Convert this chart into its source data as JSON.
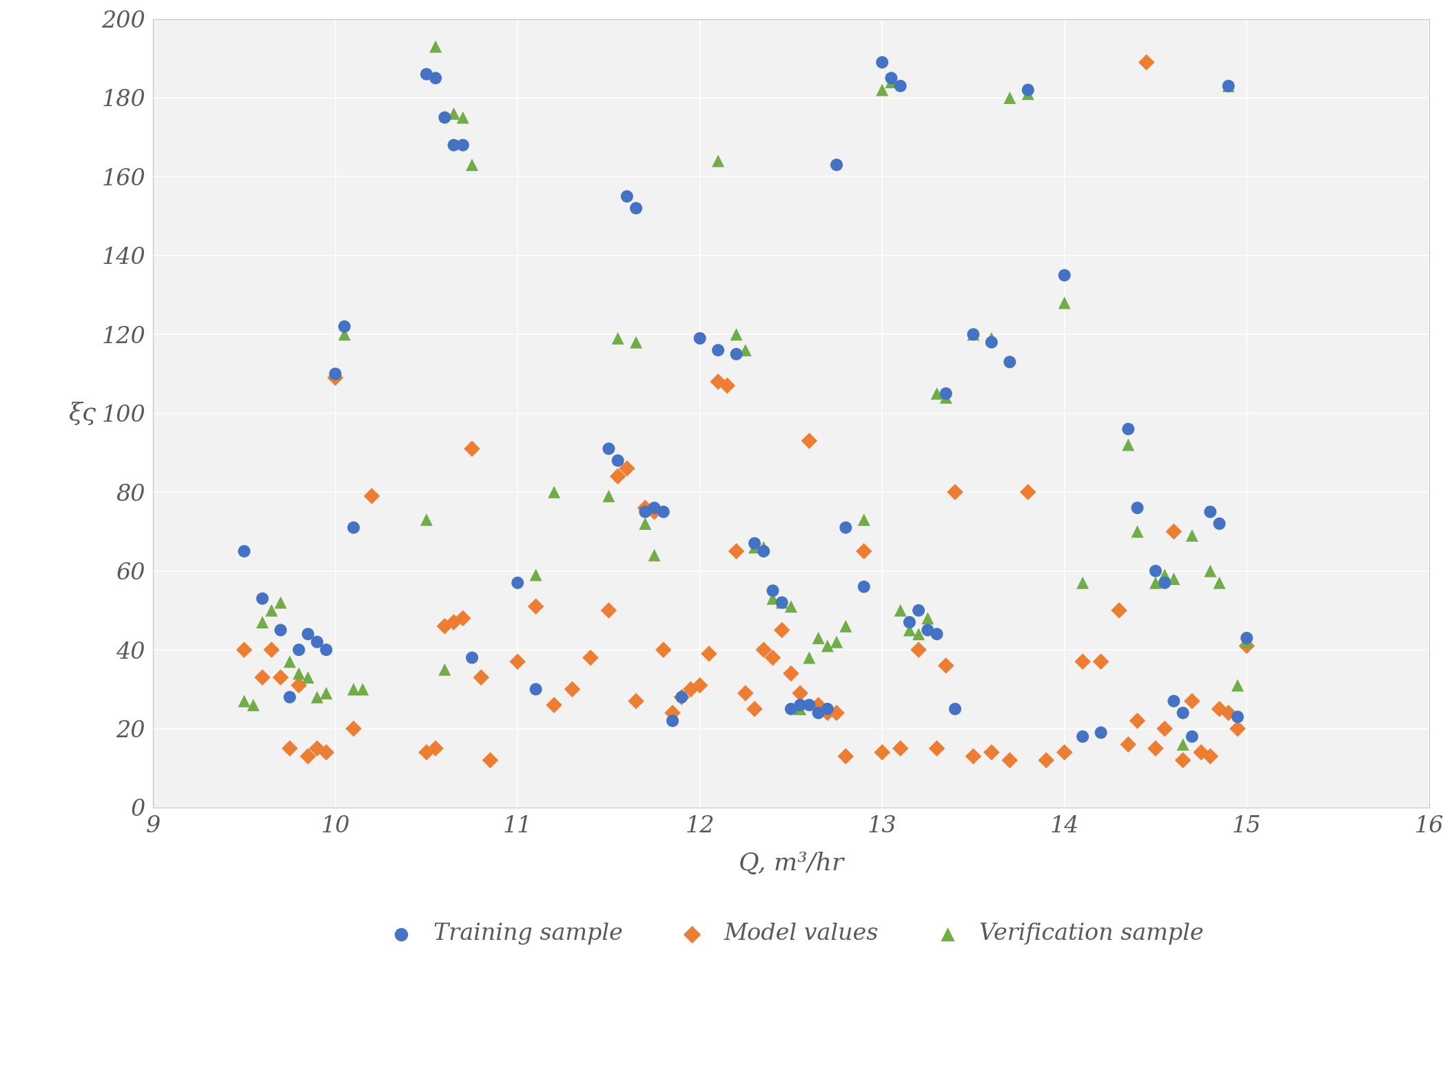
{
  "training_x": [
    9.5,
    9.6,
    9.7,
    9.75,
    9.8,
    9.85,
    9.9,
    9.95,
    10.0,
    10.05,
    10.1,
    10.5,
    10.55,
    10.6,
    10.65,
    10.7,
    10.75,
    11.0,
    11.1,
    11.5,
    11.55,
    11.6,
    11.65,
    11.7,
    11.75,
    11.8,
    11.85,
    11.9,
    12.0,
    12.1,
    12.2,
    12.3,
    12.35,
    12.4,
    12.45,
    12.5,
    12.55,
    12.6,
    12.65,
    12.7,
    12.75,
    12.8,
    12.9,
    13.0,
    13.05,
    13.1,
    13.15,
    13.2,
    13.25,
    13.3,
    13.35,
    13.4,
    13.5,
    13.6,
    13.7,
    13.8,
    14.0,
    14.1,
    14.2,
    14.35,
    14.4,
    14.5,
    14.55,
    14.6,
    14.65,
    14.7,
    14.8,
    14.85,
    14.9,
    14.95,
    15.0
  ],
  "training_y": [
    65,
    53,
    45,
    28,
    40,
    44,
    42,
    40,
    110,
    122,
    71,
    186,
    185,
    175,
    168,
    168,
    38,
    57,
    30,
    91,
    88,
    155,
    152,
    75,
    76,
    75,
    22,
    28,
    119,
    116,
    115,
    67,
    65,
    55,
    52,
    25,
    26,
    26,
    24,
    25,
    163,
    71,
    56,
    189,
    185,
    183,
    47,
    50,
    45,
    44,
    105,
    25,
    120,
    118,
    113,
    182,
    135,
    18,
    19,
    96,
    76,
    60,
    57,
    27,
    24,
    18,
    75,
    72,
    183,
    23,
    43
  ],
  "model_x": [
    9.5,
    9.6,
    9.65,
    9.7,
    9.75,
    9.8,
    9.85,
    9.9,
    9.95,
    10.0,
    10.1,
    10.2,
    10.5,
    10.55,
    10.6,
    10.65,
    10.7,
    10.75,
    10.8,
    10.85,
    11.0,
    11.1,
    11.2,
    11.3,
    11.4,
    11.5,
    11.55,
    11.6,
    11.65,
    11.7,
    11.75,
    11.8,
    11.85,
    11.9,
    11.95,
    12.0,
    12.05,
    12.1,
    12.15,
    12.2,
    12.25,
    12.3,
    12.35,
    12.4,
    12.45,
    12.5,
    12.55,
    12.6,
    12.65,
    12.7,
    12.75,
    12.8,
    12.9,
    13.0,
    13.1,
    13.2,
    13.3,
    13.35,
    13.4,
    13.5,
    13.6,
    13.7,
    13.8,
    13.9,
    14.0,
    14.1,
    14.2,
    14.3,
    14.35,
    14.4,
    14.45,
    14.5,
    14.55,
    14.6,
    14.65,
    14.7,
    14.75,
    14.8,
    14.85,
    14.9,
    14.95,
    15.0
  ],
  "model_y": [
    40,
    33,
    40,
    33,
    15,
    31,
    13,
    15,
    14,
    109,
    20,
    79,
    14,
    15,
    46,
    47,
    48,
    91,
    33,
    12,
    37,
    51,
    26,
    30,
    38,
    50,
    84,
    86,
    27,
    76,
    75,
    40,
    24,
    28,
    30,
    31,
    39,
    108,
    107,
    65,
    29,
    25,
    40,
    38,
    45,
    34,
    29,
    93,
    26,
    24,
    24,
    13,
    65,
    14,
    15,
    40,
    15,
    36,
    80,
    13,
    14,
    12,
    80,
    12,
    14,
    37,
    37,
    50,
    16,
    22,
    189,
    15,
    20,
    70,
    12,
    27,
    14,
    13,
    25,
    24,
    20,
    41
  ],
  "verification_x": [
    9.5,
    9.55,
    9.6,
    9.65,
    9.7,
    9.75,
    9.8,
    9.85,
    9.9,
    9.95,
    10.0,
    10.05,
    10.1,
    10.15,
    10.5,
    10.55,
    10.6,
    10.65,
    10.7,
    10.75,
    11.1,
    11.2,
    11.5,
    11.55,
    11.65,
    11.7,
    11.75,
    12.1,
    12.2,
    12.25,
    12.3,
    12.35,
    12.4,
    12.45,
    12.5,
    12.55,
    12.6,
    12.65,
    12.7,
    12.75,
    12.8,
    12.9,
    13.0,
    13.05,
    13.1,
    13.15,
    13.2,
    13.25,
    13.3,
    13.35,
    13.5,
    13.6,
    13.7,
    13.8,
    14.0,
    14.1,
    14.35,
    14.4,
    14.5,
    14.55,
    14.6,
    14.65,
    14.7,
    14.8,
    14.85,
    14.9,
    14.95,
    15.0
  ],
  "verification_y": [
    27,
    26,
    47,
    50,
    52,
    37,
    34,
    33,
    28,
    29,
    110,
    120,
    30,
    30,
    73,
    193,
    35,
    176,
    175,
    163,
    59,
    80,
    79,
    119,
    118,
    72,
    64,
    164,
    120,
    116,
    66,
    66,
    53,
    52,
    51,
    25,
    38,
    43,
    41,
    42,
    46,
    73,
    182,
    184,
    50,
    45,
    44,
    48,
    105,
    104,
    120,
    119,
    180,
    181,
    128,
    57,
    92,
    70,
    57,
    59,
    58,
    16,
    69,
    60,
    57,
    183,
    31,
    42
  ],
  "training_color": "#4472C4",
  "model_color": "#ED7D31",
  "verification_color": "#70AD47",
  "xlabel": "Q, m³/hr",
  "ylabel": "ξς",
  "xlim": [
    9,
    16
  ],
  "ylim": [
    0,
    200
  ],
  "xticks": [
    9,
    10,
    11,
    12,
    13,
    14,
    15,
    16
  ],
  "yticks": [
    0,
    20,
    40,
    60,
    80,
    100,
    120,
    140,
    160,
    180,
    200
  ],
  "marker_size": 120,
  "background_color": "#ffffff",
  "plot_bg_color": "#f2f2f2",
  "grid_color": "#ffffff",
  "tick_color": "#595959",
  "font_color": "#595959"
}
